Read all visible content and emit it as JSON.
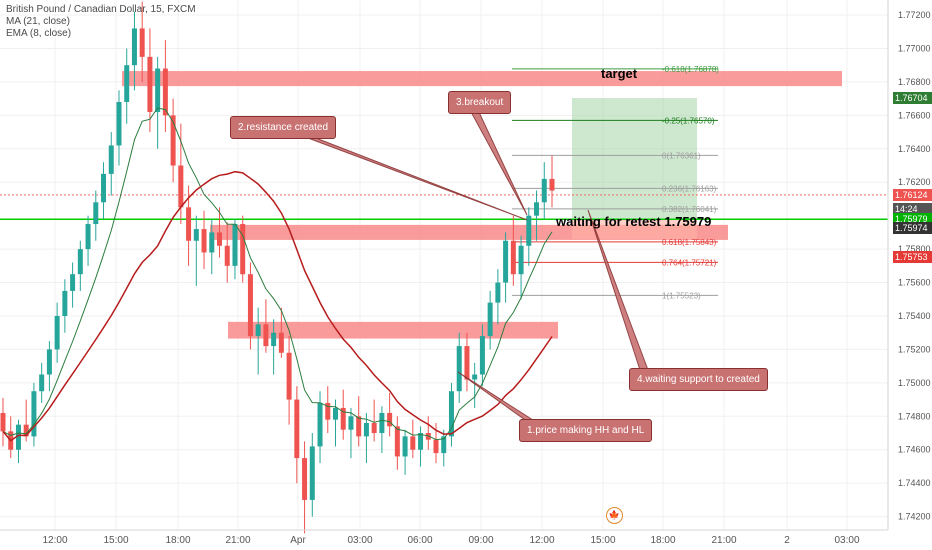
{
  "header": {
    "symbol": "British Pound / Canadian Dollar, 15, FXCM",
    "ma": "MA (21, close)",
    "ema": "EMA (8, close)"
  },
  "colors": {
    "up": "#26a69a",
    "down": "#ef5350",
    "ma": "#2a7d3e",
    "ema": "#b71c1c",
    "zone": "#f88a8a",
    "green_line": "#00cc00",
    "target_box": "#a5d6a7"
  },
  "annotations": {
    "step1": "1.price making HH and HL",
    "step2": "2.resistance created",
    "step3": "3.breakout",
    "step4": "4.waiting support to created",
    "target": "target",
    "retest": "waiting for retest  1.75979"
  },
  "fib_labels": [
    {
      "text": "-0.618(1.76878)",
      "price": 1.76878,
      "color": "#3c9b3c"
    },
    {
      "text": "-0.25(1.76570)",
      "price": 1.7657,
      "color": "#1b7d1b"
    },
    {
      "text": "0(1.76361)",
      "price": 1.76361,
      "color": "#9e9e9e"
    },
    {
      "text": "0.236(1.76163)",
      "price": 1.76163,
      "color": "#9e9e9e"
    },
    {
      "text": "0.382(1.76041)",
      "price": 1.76041,
      "color": "#9e9e9e"
    },
    {
      "text": "0.618(1.75843)",
      "price": 1.75843,
      "color": "#e53935"
    },
    {
      "text": "0.764(1.75721)",
      "price": 1.75721,
      "color": "#e53935"
    },
    {
      "text": "1(1.75523)",
      "price": 1.75523,
      "color": "#9e9e9e"
    }
  ],
  "price_tags": [
    {
      "text": "1.76704",
      "price": 1.76704,
      "color": "#2e7d32"
    },
    {
      "text": "1.76124",
      "price": 1.76124,
      "color": "#ef5350"
    },
    {
      "text": "14:24",
      "price": 1.76041,
      "color": "#555555"
    },
    {
      "text": "1.75979",
      "price": 1.75979,
      "color": "#00b300"
    },
    {
      "text": "1.75974",
      "price": 1.75926,
      "color": "#333333"
    },
    {
      "text": "1.75753",
      "price": 1.75753,
      "color": "#e53935"
    }
  ],
  "chart_data": {
    "type": "candlestick",
    "y_axis": {
      "ticks": [
        "1.77200",
        "1.77000",
        "1.76800",
        "1.76600",
        "1.76400",
        "1.76200",
        "1.75800",
        "1.75600",
        "1.75400",
        "1.75200",
        "1.75000",
        "1.74800",
        "1.74600",
        "1.74400",
        "1.74200"
      ],
      "tick_values": [
        1.772,
        1.77,
        1.768,
        1.766,
        1.764,
        1.762,
        1.758,
        1.756,
        1.754,
        1.752,
        1.75,
        1.748,
        1.746,
        1.744,
        1.742
      ],
      "range": [
        1.7412,
        1.7729
      ]
    },
    "x_axis": {
      "labels": [
        "12:00",
        "15:00",
        "18:00",
        "21:00",
        "Apr",
        "03:00",
        "06:00",
        "09:00",
        "12:00",
        "15:00",
        "18:00",
        "21:00",
        "2",
        "03:00"
      ]
    },
    "zones": [
      {
        "name": "target",
        "from": 1.76775,
        "to": 1.76865
      },
      {
        "name": "resistance-support",
        "from": 1.75855,
        "to": 1.75945
      },
      {
        "name": "lower",
        "from": 1.75265,
        "to": 1.75365
      }
    ],
    "target_box": {
      "from": 1.75979,
      "to": 1.76704
    },
    "horizontal_lines": [
      {
        "name": "retest",
        "price": 1.75979
      },
      {
        "name": "current",
        "price": 1.76124
      }
    ],
    "candles": [
      [
        1.7482,
        1.7491,
        1.7462,
        1.7471
      ],
      [
        1.7471,
        1.748,
        1.7455,
        1.746
      ],
      [
        1.746,
        1.7478,
        1.7452,
        1.7475
      ],
      [
        1.7475,
        1.749,
        1.7465,
        1.7468
      ],
      [
        1.7468,
        1.75,
        1.7462,
        1.7495
      ],
      [
        1.7495,
        1.7512,
        1.7488,
        1.7505
      ],
      [
        1.7505,
        1.7525,
        1.7495,
        1.752
      ],
      [
        1.752,
        1.7548,
        1.7512,
        1.754
      ],
      [
        1.754,
        1.7562,
        1.753,
        1.7555
      ],
      [
        1.7555,
        1.7572,
        1.7545,
        1.7565
      ],
      [
        1.7565,
        1.7585,
        1.7555,
        1.758
      ],
      [
        1.758,
        1.76,
        1.757,
        1.7595
      ],
      [
        1.7595,
        1.7615,
        1.7585,
        1.7608
      ],
      [
        1.7608,
        1.7632,
        1.7598,
        1.7625
      ],
      [
        1.7625,
        1.765,
        1.7612,
        1.7642
      ],
      [
        1.7642,
        1.7675,
        1.763,
        1.7668
      ],
      [
        1.7668,
        1.77,
        1.7655,
        1.769
      ],
      [
        1.769,
        1.7722,
        1.7675,
        1.7712
      ],
      [
        1.7712,
        1.7728,
        1.768,
        1.7695
      ],
      [
        1.7695,
        1.7712,
        1.765,
        1.7662
      ],
      [
        1.7662,
        1.7695,
        1.764,
        1.7688
      ],
      [
        1.7688,
        1.7705,
        1.765,
        1.766
      ],
      [
        1.766,
        1.767,
        1.762,
        1.763
      ],
      [
        1.763,
        1.7655,
        1.7595,
        1.7605
      ],
      [
        1.7605,
        1.7618,
        1.757,
        1.7585
      ],
      [
        1.7585,
        1.76,
        1.7558,
        1.7592
      ],
      [
        1.7592,
        1.7603,
        1.7568,
        1.7578
      ],
      [
        1.7578,
        1.7598,
        1.7565,
        1.759
      ],
      [
        1.759,
        1.7605,
        1.7575,
        1.7582
      ],
      [
        1.7582,
        1.7596,
        1.756,
        1.757
      ],
      [
        1.757,
        1.7598,
        1.7562,
        1.7595
      ],
      [
        1.7595,
        1.76,
        1.756,
        1.7565
      ],
      [
        1.7565,
        1.7572,
        1.752,
        1.7528
      ],
      [
        1.7528,
        1.7545,
        1.7505,
        1.7535
      ],
      [
        1.7535,
        1.755,
        1.7518,
        1.7522
      ],
      [
        1.7522,
        1.7538,
        1.7505,
        1.753
      ],
      [
        1.753,
        1.7545,
        1.7515,
        1.7518
      ],
      [
        1.7518,
        1.7528,
        1.7475,
        1.749
      ],
      [
        1.749,
        1.7498,
        1.744,
        1.7455
      ],
      [
        1.7455,
        1.7465,
        1.741,
        1.743
      ],
      [
        1.743,
        1.747,
        1.742,
        1.7462
      ],
      [
        1.7462,
        1.7495,
        1.7452,
        1.7488
      ],
      [
        1.7488,
        1.7498,
        1.747,
        1.7478
      ],
      [
        1.7478,
        1.749,
        1.7462,
        1.7485
      ],
      [
        1.7485,
        1.7496,
        1.7466,
        1.7472
      ],
      [
        1.7472,
        1.7485,
        1.7455,
        1.748
      ],
      [
        1.748,
        1.7492,
        1.7462,
        1.7468
      ],
      [
        1.7468,
        1.7482,
        1.7452,
        1.7476
      ],
      [
        1.7476,
        1.749,
        1.7465,
        1.747
      ],
      [
        1.747,
        1.7486,
        1.7458,
        1.7482
      ],
      [
        1.7482,
        1.7494,
        1.7468,
        1.7474
      ],
      [
        1.7474,
        1.748,
        1.7448,
        1.7456
      ],
      [
        1.7456,
        1.7472,
        1.7445,
        1.7468
      ],
      [
        1.7468,
        1.7478,
        1.7455,
        1.746
      ],
      [
        1.746,
        1.7474,
        1.745,
        1.747
      ],
      [
        1.747,
        1.748,
        1.746,
        1.7466
      ],
      [
        1.7466,
        1.7476,
        1.7452,
        1.7458
      ],
      [
        1.7458,
        1.7472,
        1.745,
        1.7468
      ],
      [
        1.7468,
        1.75,
        1.7462,
        1.7495
      ],
      [
        1.7495,
        1.753,
        1.7488,
        1.7522
      ],
      [
        1.7522,
        1.753,
        1.7495,
        1.7502
      ],
      [
        1.7502,
        1.7512,
        1.7485,
        1.7505
      ],
      [
        1.7505,
        1.7535,
        1.7498,
        1.7528
      ],
      [
        1.7528,
        1.7555,
        1.752,
        1.7548
      ],
      [
        1.7548,
        1.7568,
        1.7535,
        1.756
      ],
      [
        1.756,
        1.759,
        1.7548,
        1.7585
      ],
      [
        1.7585,
        1.76,
        1.7558,
        1.7565
      ],
      [
        1.7565,
        1.7588,
        1.755,
        1.7582
      ],
      [
        1.7582,
        1.7605,
        1.757,
        1.76
      ],
      [
        1.76,
        1.7615,
        1.7585,
        1.7608
      ],
      [
        1.7608,
        1.7632,
        1.7598,
        1.7622
      ],
      [
        1.7622,
        1.7636,
        1.7605,
        1.7615
      ]
    ]
  }
}
